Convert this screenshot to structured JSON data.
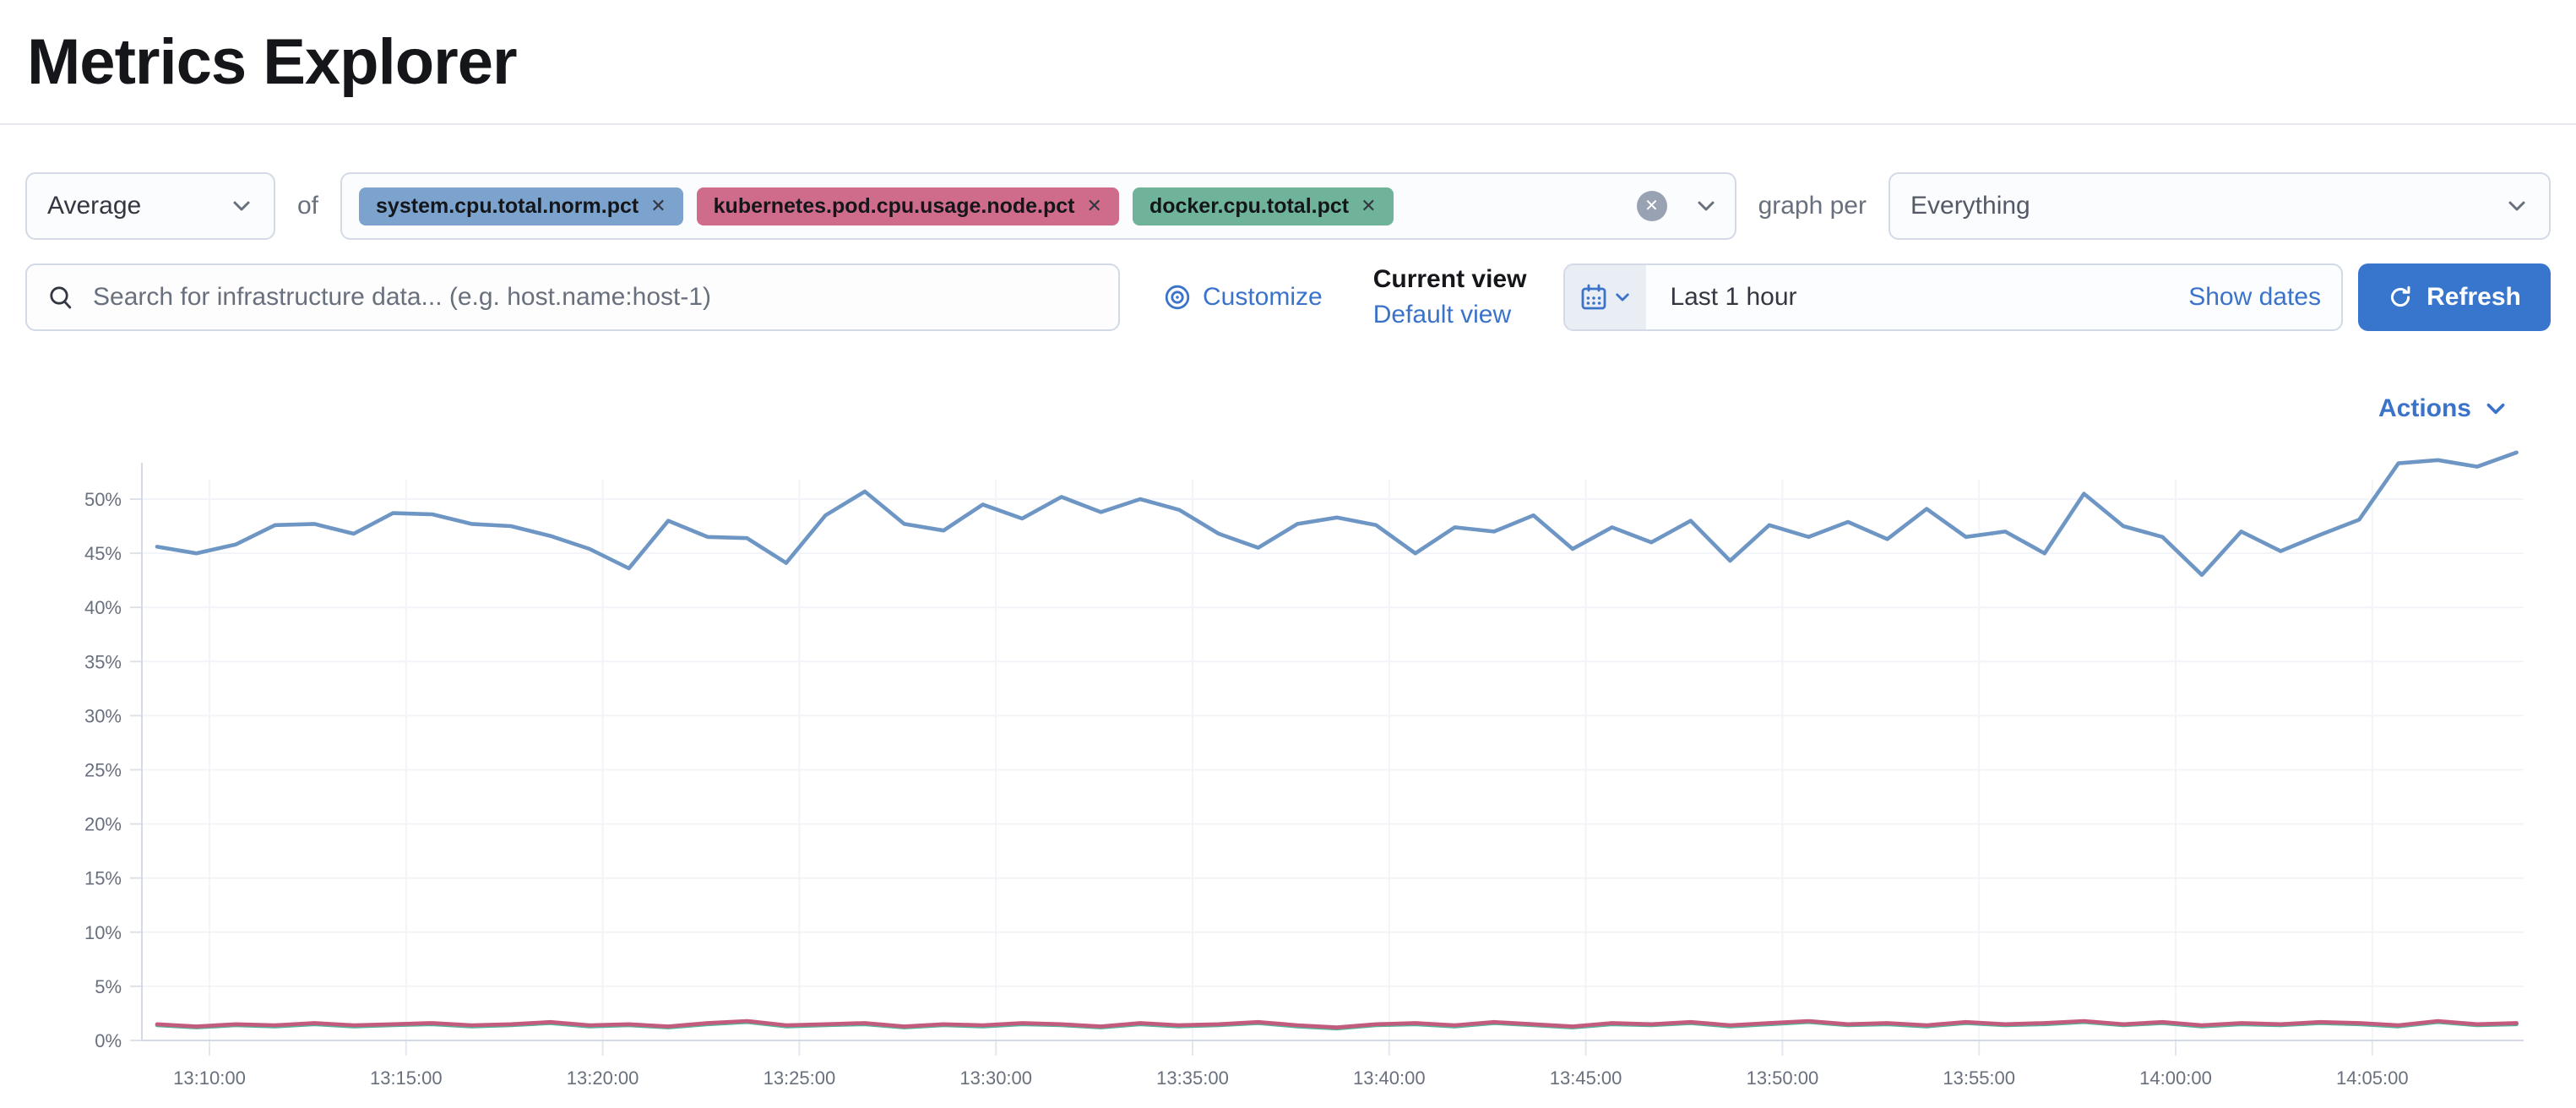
{
  "header": {
    "title": "Metrics Explorer"
  },
  "toolbar": {
    "aggregation": {
      "value": "Average"
    },
    "of_label": "of",
    "metrics": [
      {
        "label": "system.cpu.total.norm.pct",
        "badge_color": "#7ba3cd",
        "line_color": "#6e96c4"
      },
      {
        "label": "kubernetes.pod.cpu.usage.node.pct",
        "badge_color": "#d06c8b",
        "line_color": "#c25b7e"
      },
      {
        "label": "docker.cpu.total.pct",
        "badge_color": "#6fb49a",
        "line_color": "#54b399"
      }
    ],
    "remove_icon": "✕",
    "graph_per_label": "graph per",
    "group_by": {
      "value": "Everything"
    }
  },
  "filter_bar": {
    "search": {
      "placeholder": "Search for infrastructure data... (e.g. host.name:host-1)",
      "value": ""
    },
    "customize_label": "Customize",
    "view_picker": {
      "title": "Current view",
      "selected": "Default view"
    },
    "time_picker": {
      "value": "Last 1 hour",
      "show_dates_label": "Show dates"
    },
    "refresh_label": "Refresh"
  },
  "actions_label": "Actions",
  "colors": {
    "primary_button": "#3876cd",
    "link": "#3a73c9",
    "border": "#d3dae6",
    "muted_text": "#69707d",
    "title_text": "#14161a"
  },
  "chart_data": {
    "type": "line",
    "title": "",
    "xlabel": "",
    "ylabel": "",
    "x_start": "13:08:40",
    "x_interval_seconds": 60,
    "x_tick_labels": [
      "13:10:00",
      "13:15:00",
      "13:20:00",
      "13:25:00",
      "13:30:00",
      "13:35:00",
      "13:40:00",
      "13:45:00",
      "13:50:00",
      "13:55:00",
      "14:00:00",
      "14:05:00"
    ],
    "y_tick_labels": [
      "0%",
      "5%",
      "10%",
      "15%",
      "20%",
      "25%",
      "30%",
      "35%",
      "40%",
      "45%",
      "50%"
    ],
    "ylim": [
      0,
      55
    ],
    "grid": true,
    "legend": false,
    "series": [
      {
        "name": "system.cpu.total.norm.pct",
        "color": "#6e96c4",
        "values": [
          45.6,
          45.0,
          45.8,
          47.6,
          47.7,
          46.8,
          48.7,
          48.6,
          47.7,
          47.5,
          46.6,
          45.4,
          43.6,
          48.0,
          46.5,
          46.4,
          44.1,
          48.5,
          50.7,
          47.7,
          47.1,
          49.5,
          48.2,
          50.2,
          48.8,
          50.0,
          49.0,
          46.8,
          45.5,
          47.7,
          48.3,
          47.6,
          45.0,
          47.4,
          47.0,
          48.5,
          45.4,
          47.4,
          46.0,
          48.0,
          44.3,
          47.6,
          46.5,
          47.9,
          46.3,
          49.1,
          46.5,
          47.0,
          45.0,
          50.5,
          47.5,
          46.5,
          43.0,
          47.0,
          45.2,
          46.7,
          48.1,
          53.3,
          53.6,
          53.0,
          54.3
        ]
      },
      {
        "name": "kubernetes.pod.cpu.usage.node.pct",
        "color": "#c25b7e",
        "values": [
          1.5,
          1.3,
          1.5,
          1.4,
          1.6,
          1.4,
          1.5,
          1.6,
          1.4,
          1.5,
          1.7,
          1.4,
          1.5,
          1.3,
          1.6,
          1.8,
          1.4,
          1.5,
          1.6,
          1.3,
          1.5,
          1.4,
          1.6,
          1.5,
          1.3,
          1.6,
          1.4,
          1.5,
          1.7,
          1.4,
          1.2,
          1.5,
          1.6,
          1.4,
          1.7,
          1.5,
          1.3,
          1.6,
          1.5,
          1.7,
          1.4,
          1.6,
          1.8,
          1.5,
          1.6,
          1.4,
          1.7,
          1.5,
          1.6,
          1.8,
          1.5,
          1.7,
          1.4,
          1.6,
          1.5,
          1.7,
          1.6,
          1.4,
          1.8,
          1.5,
          1.6
        ]
      },
      {
        "name": "docker.cpu.total.pct",
        "color": "#54b399",
        "values": [
          1.4,
          1.2,
          1.4,
          1.3,
          1.5,
          1.3,
          1.4,
          1.5,
          1.3,
          1.4,
          1.6,
          1.3,
          1.4,
          1.2,
          1.5,
          1.7,
          1.3,
          1.4,
          1.5,
          1.2,
          1.4,
          1.3,
          1.5,
          1.4,
          1.2,
          1.5,
          1.3,
          1.4,
          1.6,
          1.3,
          1.1,
          1.4,
          1.5,
          1.3,
          1.6,
          1.4,
          1.2,
          1.5,
          1.4,
          1.6,
          1.3,
          1.5,
          1.7,
          1.4,
          1.5,
          1.3,
          1.6,
          1.4,
          1.5,
          1.7,
          1.4,
          1.6,
          1.3,
          1.5,
          1.4,
          1.6,
          1.5,
          1.3,
          1.7,
          1.4,
          1.5
        ]
      }
    ]
  }
}
